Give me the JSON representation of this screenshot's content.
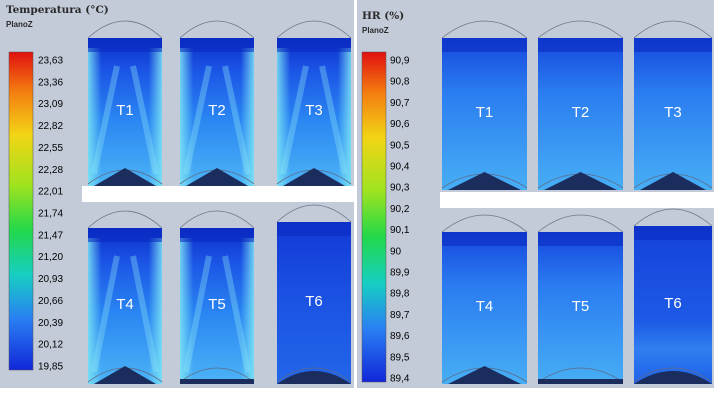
{
  "left_panel": {
    "title": "Temperatura (°C)",
    "plane": "PlanoZ",
    "scale_ticks": [
      "23,63",
      "23,36",
      "23,09",
      "22,82",
      "22,55",
      "22,28",
      "22,01",
      "21,74",
      "21,47",
      "21,20",
      "20,93",
      "20,66",
      "20,39",
      "20,12",
      "19,85"
    ],
    "tanks": [
      "T1",
      "T2",
      "T3",
      "T4",
      "T5",
      "T6"
    ]
  },
  "right_panel": {
    "title": "HR (%)",
    "plane": "PlanoZ",
    "scale_ticks": [
      "90,9",
      "90,8",
      "90,7",
      "90,6",
      "90,5",
      "90,4",
      "90,3",
      "90,2",
      "90,1",
      "90",
      "89,9",
      "89,8",
      "89,7",
      "89,6",
      "89,5",
      "89,4"
    ],
    "tanks": [
      "T1",
      "T2",
      "T3",
      "T4",
      "T5",
      "T6"
    ]
  },
  "colors": {
    "panel_bg": "#c3cbd9",
    "deep_blue": "#0a2fc9",
    "mid_blue": "#1f6ff0",
    "light_blue": "#49b3f6",
    "cyan_edge": "#79e3f0",
    "heap_dark": "#1a2e5f"
  }
}
